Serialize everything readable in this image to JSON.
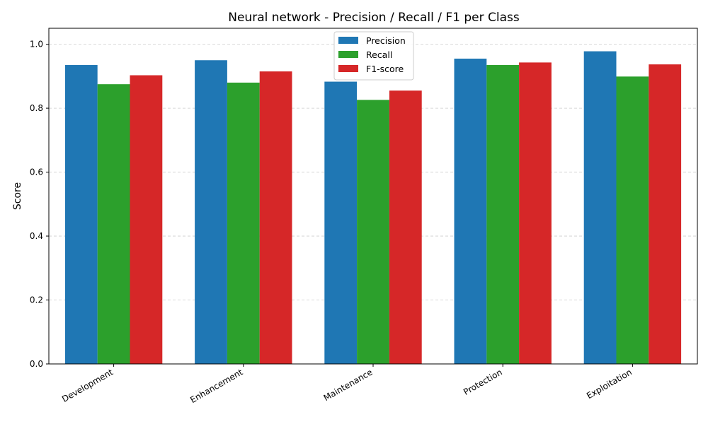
{
  "chart_data": {
    "type": "bar",
    "title": "Neural network - Precision / Recall / F1 per Class",
    "xlabel": "",
    "ylabel": "Score",
    "ylim": [
      0,
      1.05
    ],
    "yticks": [
      "0.0",
      "0.2",
      "0.4",
      "0.6",
      "0.8",
      "1.0"
    ],
    "categories": [
      "Development",
      "Enhancement",
      "Maintenance",
      "Protection",
      "Exploitation"
    ],
    "series": [
      {
        "name": "Precision",
        "color": "#1f77b4",
        "values": [
          0.935,
          0.95,
          0.883,
          0.955,
          0.978
        ]
      },
      {
        "name": "Recall",
        "color": "#2ca02c",
        "values": [
          0.875,
          0.88,
          0.826,
          0.935,
          0.899
        ]
      },
      {
        "name": "F1-score",
        "color": "#d62728",
        "values": [
          0.903,
          0.915,
          0.855,
          0.943,
          0.937
        ]
      }
    ],
    "grid": "y-dashed",
    "legend_position": "top-center"
  }
}
